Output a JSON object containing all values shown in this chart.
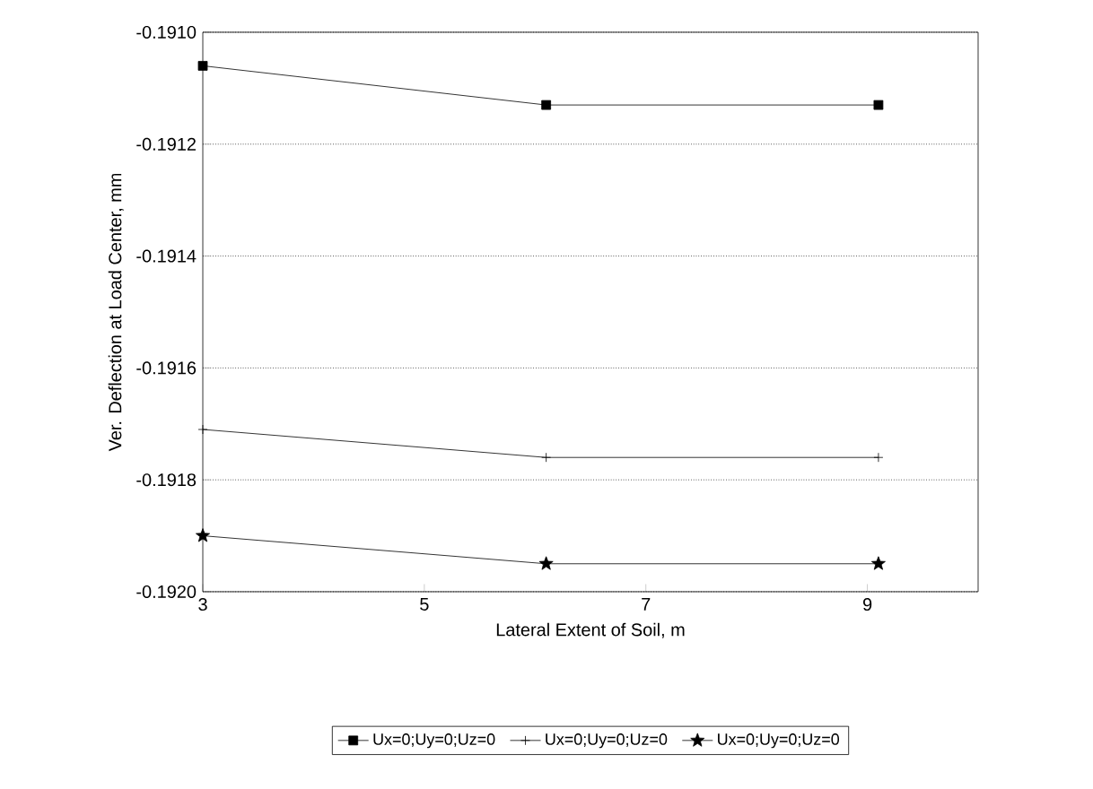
{
  "chart_data": {
    "type": "line",
    "xlabel": "Lateral Extent of Soil, m",
    "ylabel": "Ver. Deflection at Load Center, mm",
    "xlim": [
      3,
      10
    ],
    "xticks": [
      3,
      5,
      7,
      9
    ],
    "ylim": [
      -0.192,
      -0.191
    ],
    "yticks": [
      {
        "value": -0.192,
        "label": "-0.1920"
      },
      {
        "value": -0.1918,
        "label": "-0.1918"
      },
      {
        "value": -0.1916,
        "label": "-0.1916"
      },
      {
        "value": -0.1914,
        "label": "-0.1914"
      },
      {
        "value": -0.1912,
        "label": "-0.1912"
      },
      {
        "value": -0.191,
        "label": "-0.1910"
      }
    ],
    "grid": "y",
    "legend": "bottom",
    "line_style": "solid",
    "series": [
      {
        "name": "Ux=0;Uy=0;Uz=0",
        "color": "#000000",
        "marker": "square",
        "x": [
          3,
          6.1,
          9.1
        ],
        "values": [
          -0.19106,
          -0.19113,
          -0.19113
        ]
      },
      {
        "name": "Ux=0;Uy=0;Uz=0",
        "color": "#000000",
        "marker": "cross",
        "x": [
          3,
          6.1,
          9.1
        ],
        "values": [
          -0.19171,
          -0.19176,
          -0.19176
        ]
      },
      {
        "name": "Ux=0;Uy=0;Uz=0",
        "color": "#000000",
        "marker": "star",
        "x": [
          3,
          6.1,
          9.1
        ],
        "values": [
          -0.1919,
          -0.19195,
          -0.19195
        ]
      }
    ]
  }
}
